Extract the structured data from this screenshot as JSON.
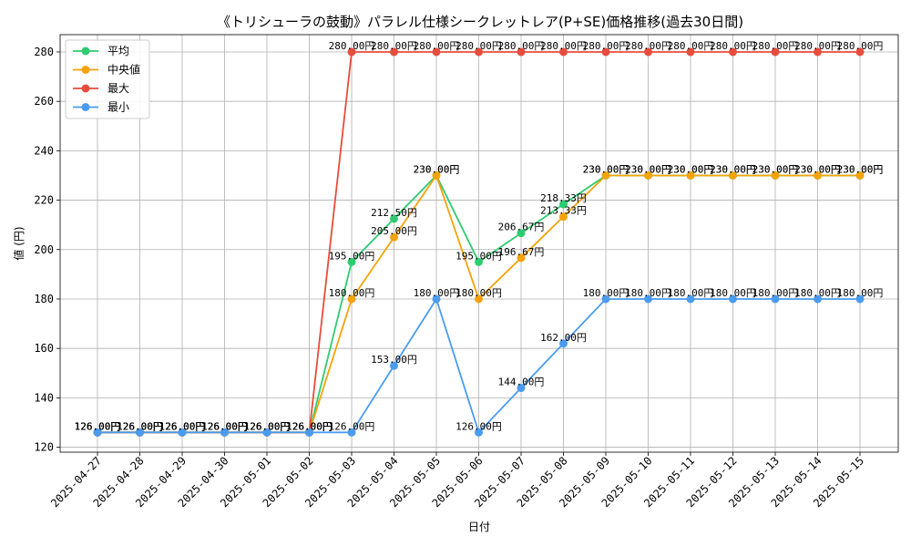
{
  "chart_data": {
    "type": "line",
    "title": "《トリシューラの鼓動》パラレル仕様シークレットレア(P+SE)価格推移(過去30日間)",
    "xlabel": "日付",
    "ylabel": "値 (円)",
    "ylim": [
      118,
      287
    ],
    "yticks": [
      120,
      140,
      160,
      180,
      200,
      220,
      240,
      260,
      280
    ],
    "grid": true,
    "legend_position": "top-left",
    "categories": [
      "2025-04-27",
      "2025-04-28",
      "2025-04-29",
      "2025-04-30",
      "2025-05-01",
      "2025-05-02",
      "2025-05-03",
      "2025-05-04",
      "2025-05-05",
      "2025-05-06",
      "2025-05-07",
      "2025-05-08",
      "2025-05-09",
      "2025-05-10",
      "2025-05-11",
      "2025-05-12",
      "2025-05-13",
      "2025-05-14",
      "2025-05-15"
    ],
    "series": [
      {
        "name": "平均",
        "color": "#2ecc71",
        "values": [
          126,
          126,
          126,
          126,
          126,
          126,
          195,
          212.5,
          230,
          195,
          206.67,
          218.33,
          230,
          230,
          230,
          230,
          230,
          230,
          230
        ],
        "labels": [
          "126.00円",
          "126.00円",
          "126.00円",
          "126.00円",
          "126.00円",
          "126.00円",
          "195.00円",
          "212.50円",
          "230.00円",
          "195.00円",
          "206.67円",
          "218.33円",
          "230.00円",
          "230.00円",
          "230.00円",
          "230.00円",
          "230.00円",
          "230.00円",
          "230.00円"
        ]
      },
      {
        "name": "中央値",
        "color": "#f5a30a",
        "values": [
          126,
          126,
          126,
          126,
          126,
          126,
          180,
          205,
          230,
          180,
          196.67,
          213.33,
          230,
          230,
          230,
          230,
          230,
          230,
          230
        ],
        "labels": [
          "126.00円",
          "126.00円",
          "126.00円",
          "126.00円",
          "126.00円",
          "126.00円",
          "180.00円",
          "205.00円",
          "230.00円",
          "180.00円",
          "196.67円",
          "213.33円",
          "230.00円",
          "230.00円",
          "230.00円",
          "230.00円",
          "230.00円",
          "230.00円",
          "230.00円"
        ]
      },
      {
        "name": "最大",
        "color": "#e74c3c",
        "values": [
          126,
          126,
          126,
          126,
          126,
          126,
          280,
          280,
          280,
          280,
          280,
          280,
          280,
          280,
          280,
          280,
          280,
          280,
          280
        ],
        "labels": [
          "126.00円",
          "126.00円",
          "126.00円",
          "126.00円",
          "126.00円",
          "126.00円",
          "280.00円",
          "280.00円",
          "280.00円",
          "280.00円",
          "280.00円",
          "280.00円",
          "280.00円",
          "280.00円",
          "280.00円",
          "280.00円",
          "280.00円",
          "280.00円",
          "280.00円"
        ]
      },
      {
        "name": "最小",
        "color": "#4a9cf0",
        "values": [
          126,
          126,
          126,
          126,
          126,
          126,
          126,
          153,
          180,
          126,
          144,
          162,
          180,
          180,
          180,
          180,
          180,
          180,
          180
        ],
        "labels": [
          "126.00円",
          "126.00円",
          "126.00円",
          "126.00円",
          "126.00円",
          "126.00円",
          "126.00円",
          "153.00円",
          "180.00円",
          "126.00円",
          "144.00円",
          "162.00円",
          "180.00円",
          "180.00円",
          "180.00円",
          "180.00円",
          "180.00円",
          "180.00円",
          "180.00円"
        ]
      }
    ]
  }
}
